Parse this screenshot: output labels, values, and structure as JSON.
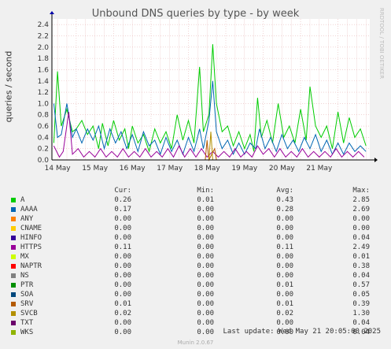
{
  "chart_data": {
    "type": "line",
    "title": "Unbound DNS queries by type - by week",
    "ylabel": "queries / second",
    "ylim": [
      0,
      2.5
    ],
    "y_ticks": [
      "0.0",
      "0.2",
      "0.4",
      "0.6",
      "0.8",
      "1.0",
      "1.2",
      "1.4",
      "1.6",
      "1.8",
      "2.0",
      "2.2",
      "2.4"
    ],
    "x_ticks": [
      "14 May",
      "15 May",
      "16 May",
      "17 May",
      "18 May",
      "19 May",
      "20 May",
      "21 May"
    ],
    "x_range_days": [
      13.35,
      21.85
    ],
    "grid": true,
    "side_text": "RRDTOOL / TOBI OETIKER",
    "series": [
      {
        "name": "A",
        "color": "#00cc00",
        "cur": "0.26",
        "min": "0.01",
        "avg": "0.43",
        "max": "2.85",
        "points": [
          [
            13.4,
            0.3
          ],
          [
            13.5,
            1.57
          ],
          [
            13.6,
            0.6
          ],
          [
            13.75,
            0.9
          ],
          [
            13.9,
            0.5
          ],
          [
            14.0,
            0.55
          ],
          [
            14.15,
            0.7
          ],
          [
            14.3,
            0.45
          ],
          [
            14.45,
            0.6
          ],
          [
            14.6,
            0.2
          ],
          [
            14.7,
            0.65
          ],
          [
            14.85,
            0.25
          ],
          [
            15.0,
            0.7
          ],
          [
            15.15,
            0.35
          ],
          [
            15.3,
            0.55
          ],
          [
            15.4,
            0.2
          ],
          [
            15.5,
            0.6
          ],
          [
            15.65,
            0.3
          ],
          [
            15.8,
            0.45
          ],
          [
            15.95,
            0.15
          ],
          [
            16.1,
            0.55
          ],
          [
            16.25,
            0.3
          ],
          [
            16.4,
            0.5
          ],
          [
            16.55,
            0.2
          ],
          [
            16.7,
            0.8
          ],
          [
            16.85,
            0.35
          ],
          [
            17.0,
            0.7
          ],
          [
            17.15,
            0.3
          ],
          [
            17.3,
            1.65
          ],
          [
            17.4,
            0.5
          ],
          [
            17.55,
            0.8
          ],
          [
            17.65,
            2.05
          ],
          [
            17.75,
            1.0
          ],
          [
            17.9,
            0.5
          ],
          [
            18.05,
            0.6
          ],
          [
            18.2,
            0.25
          ],
          [
            18.35,
            0.5
          ],
          [
            18.5,
            0.2
          ],
          [
            18.65,
            0.45
          ],
          [
            18.75,
            0.15
          ],
          [
            18.85,
            1.1
          ],
          [
            18.95,
            0.4
          ],
          [
            19.1,
            0.7
          ],
          [
            19.25,
            0.3
          ],
          [
            19.4,
            1.0
          ],
          [
            19.55,
            0.4
          ],
          [
            19.7,
            0.6
          ],
          [
            19.85,
            0.3
          ],
          [
            20.0,
            0.9
          ],
          [
            20.15,
            0.35
          ],
          [
            20.25,
            1.3
          ],
          [
            20.4,
            0.6
          ],
          [
            20.55,
            0.4
          ],
          [
            20.7,
            0.6
          ],
          [
            20.85,
            0.2
          ],
          [
            21.0,
            0.85
          ],
          [
            21.15,
            0.3
          ],
          [
            21.3,
            0.75
          ],
          [
            21.45,
            0.4
          ],
          [
            21.6,
            0.55
          ],
          [
            21.75,
            0.25
          ]
        ]
      },
      {
        "name": "AAAA",
        "color": "#0066b3",
        "cur": "0.17",
        "min": "0.00",
        "avg": "0.28",
        "max": "2.69",
        "points": [
          [
            13.4,
            1.0
          ],
          [
            13.5,
            0.4
          ],
          [
            13.6,
            0.45
          ],
          [
            13.75,
            1.0
          ],
          [
            13.9,
            0.4
          ],
          [
            14.0,
            0.55
          ],
          [
            14.15,
            0.3
          ],
          [
            14.3,
            0.55
          ],
          [
            14.45,
            0.35
          ],
          [
            14.6,
            0.6
          ],
          [
            14.75,
            0.2
          ],
          [
            14.9,
            0.55
          ],
          [
            15.05,
            0.3
          ],
          [
            15.2,
            0.5
          ],
          [
            15.35,
            0.2
          ],
          [
            15.5,
            0.45
          ],
          [
            15.65,
            0.15
          ],
          [
            15.8,
            0.5
          ],
          [
            15.95,
            0.25
          ],
          [
            16.1,
            0.35
          ],
          [
            16.25,
            0.1
          ],
          [
            16.4,
            0.4
          ],
          [
            16.55,
            0.15
          ],
          [
            16.7,
            0.35
          ],
          [
            16.85,
            0.1
          ],
          [
            17.0,
            0.4
          ],
          [
            17.15,
            0.15
          ],
          [
            17.3,
            0.55
          ],
          [
            17.4,
            0.2
          ],
          [
            17.55,
            0.7
          ],
          [
            17.65,
            1.4
          ],
          [
            17.75,
            0.5
          ],
          [
            17.9,
            0.2
          ],
          [
            18.05,
            0.35
          ],
          [
            18.2,
            0.1
          ],
          [
            18.35,
            0.3
          ],
          [
            18.5,
            0.1
          ],
          [
            18.65,
            0.3
          ],
          [
            18.8,
            0.2
          ],
          [
            18.9,
            0.55
          ],
          [
            19.05,
            0.2
          ],
          [
            19.2,
            0.4
          ],
          [
            19.35,
            0.15
          ],
          [
            19.5,
            0.45
          ],
          [
            19.65,
            0.2
          ],
          [
            19.8,
            0.35
          ],
          [
            19.95,
            0.15
          ],
          [
            20.1,
            0.4
          ],
          [
            20.25,
            0.2
          ],
          [
            20.4,
            0.45
          ],
          [
            20.55,
            0.15
          ],
          [
            20.7,
            0.35
          ],
          [
            20.85,
            0.1
          ],
          [
            21.0,
            0.3
          ],
          [
            21.15,
            0.1
          ],
          [
            21.3,
            0.3
          ],
          [
            21.45,
            0.15
          ],
          [
            21.6,
            0.25
          ],
          [
            21.75,
            0.15
          ]
        ]
      },
      {
        "name": "ANY",
        "color": "#ff8000",
        "cur": "0.00",
        "min": "0.00",
        "avg": "0.00",
        "max": "0.00",
        "points": []
      },
      {
        "name": "CNAME",
        "color": "#ffcc00",
        "cur": "0.00",
        "min": "0.00",
        "avg": "0.00",
        "max": "0.00",
        "points": []
      },
      {
        "name": "HINFO",
        "color": "#330099",
        "cur": "0.00",
        "min": "0.00",
        "avg": "0.00",
        "max": "0.04",
        "points": []
      },
      {
        "name": "HTTPS",
        "color": "#990099",
        "cur": "0.11",
        "min": "0.00",
        "avg": "0.11",
        "max": "2.49",
        "points": [
          [
            13.4,
            0.25
          ],
          [
            13.55,
            0.05
          ],
          [
            13.65,
            0.15
          ],
          [
            13.8,
            0.85
          ],
          [
            13.9,
            0.1
          ],
          [
            14.05,
            0.2
          ],
          [
            14.2,
            0.05
          ],
          [
            14.35,
            0.15
          ],
          [
            14.5,
            0.05
          ],
          [
            14.65,
            0.2
          ],
          [
            14.8,
            0.05
          ],
          [
            14.95,
            0.15
          ],
          [
            15.1,
            0.05
          ],
          [
            15.25,
            0.2
          ],
          [
            15.4,
            0.05
          ],
          [
            15.55,
            0.15
          ],
          [
            15.7,
            0.05
          ],
          [
            15.85,
            0.2
          ],
          [
            16.0,
            0.05
          ],
          [
            16.15,
            0.15
          ],
          [
            16.3,
            0.05
          ],
          [
            16.45,
            0.2
          ],
          [
            16.6,
            0.05
          ],
          [
            16.75,
            0.25
          ],
          [
            16.9,
            0.05
          ],
          [
            17.05,
            0.2
          ],
          [
            17.2,
            0.05
          ],
          [
            17.35,
            0.2
          ],
          [
            17.5,
            0.05
          ],
          [
            17.65,
            0.15
          ],
          [
            17.8,
            0.05
          ],
          [
            17.95,
            0.15
          ],
          [
            18.1,
            0.05
          ],
          [
            18.25,
            0.2
          ],
          [
            18.4,
            0.05
          ],
          [
            18.55,
            0.15
          ],
          [
            18.7,
            0.05
          ],
          [
            18.85,
            0.25
          ],
          [
            19.0,
            0.1
          ],
          [
            19.15,
            0.2
          ],
          [
            19.3,
            0.05
          ],
          [
            19.45,
            0.2
          ],
          [
            19.6,
            0.05
          ],
          [
            19.75,
            0.15
          ],
          [
            19.9,
            0.05
          ],
          [
            20.05,
            0.2
          ],
          [
            20.2,
            0.05
          ],
          [
            20.35,
            0.15
          ],
          [
            20.5,
            0.05
          ],
          [
            20.65,
            0.15
          ],
          [
            20.8,
            0.05
          ],
          [
            20.95,
            0.2
          ],
          [
            21.1,
            0.05
          ],
          [
            21.25,
            0.15
          ],
          [
            21.4,
            0.05
          ],
          [
            21.55,
            0.15
          ],
          [
            21.7,
            0.05
          ]
        ]
      },
      {
        "name": "MX",
        "color": "#ccff00",
        "cur": "0.00",
        "min": "0.00",
        "avg": "0.00",
        "max": "0.01",
        "points": []
      },
      {
        "name": "NAPTR",
        "color": "#ff0000",
        "cur": "0.00",
        "min": "0.00",
        "avg": "0.00",
        "max": "0.38",
        "points": []
      },
      {
        "name": "NS",
        "color": "#808080",
        "cur": "0.00",
        "min": "0.00",
        "avg": "0.00",
        "max": "0.04",
        "points": []
      },
      {
        "name": "PTR",
        "color": "#008f00",
        "cur": "0.00",
        "min": "0.00",
        "avg": "0.01",
        "max": "0.57",
        "points": []
      },
      {
        "name": "SOA",
        "color": "#00487d",
        "cur": "0.00",
        "min": "0.00",
        "avg": "0.00",
        "max": "0.05",
        "points": []
      },
      {
        "name": "SRV",
        "color": "#b35a00",
        "cur": "0.01",
        "min": "0.00",
        "avg": "0.01",
        "max": "0.39",
        "points": [
          [
            17.45,
            0.0
          ],
          [
            17.5,
            0.35
          ],
          [
            17.55,
            0.0
          ],
          [
            17.7,
            0.2
          ],
          [
            17.75,
            0.0
          ]
        ]
      },
      {
        "name": "SVCB",
        "color": "#b38f00",
        "cur": "0.02",
        "min": "0.00",
        "avg": "0.02",
        "max": "1.30",
        "points": [
          [
            17.55,
            0.0
          ],
          [
            17.6,
            0.5
          ],
          [
            17.65,
            0.0
          ]
        ]
      },
      {
        "name": "TXT",
        "color": "#6b006b",
        "cur": "0.00",
        "min": "0.00",
        "avg": "0.00",
        "max": "0.04",
        "points": []
      },
      {
        "name": "WKS",
        "color": "#8fb300",
        "cur": "0.00",
        "min": "0.00",
        "avg": "0.00",
        "max": "0.04",
        "points": []
      }
    ]
  },
  "legend_header": {
    "cur": "Cur:",
    "min": "Min:",
    "avg": "Avg:",
    "max": "Max:"
  },
  "footer": {
    "last_update": "Last update: Wed May 21 20:05:00 2025",
    "version": "Munin 2.0.67"
  }
}
